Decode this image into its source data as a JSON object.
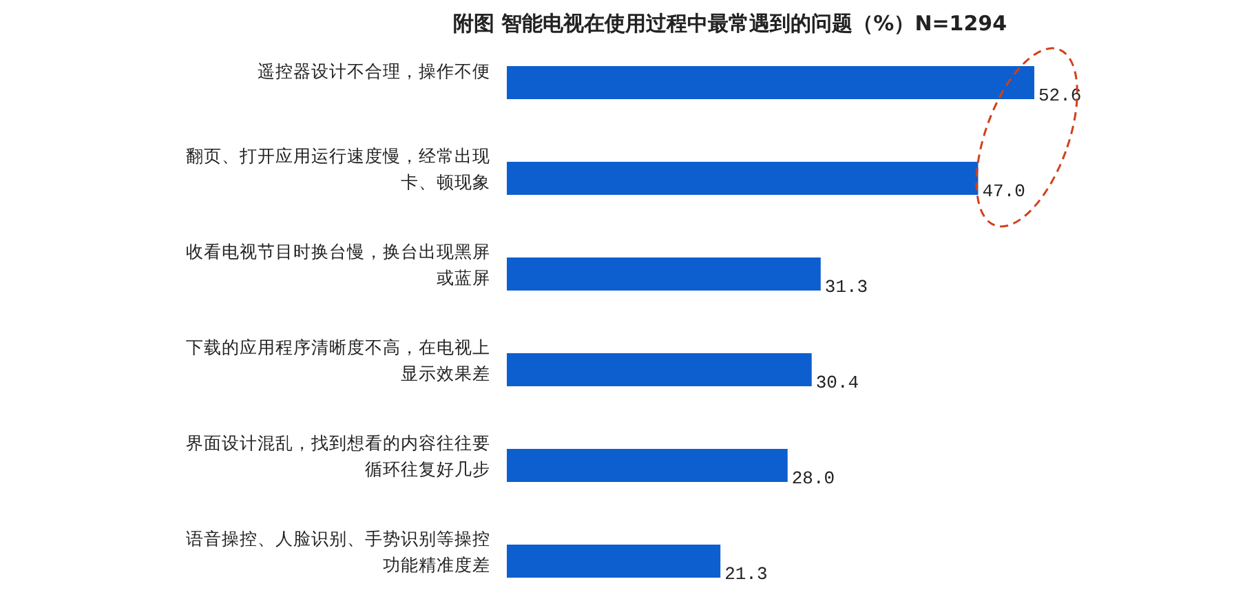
{
  "chart_data": {
    "type": "bar",
    "orientation": "horizontal",
    "title": "附图 智能电视在使用过程中最常遇到的问题（%）N=1294",
    "categories": [
      "遥控器设计不合理，操作不便",
      "翻页、打开应用运行速度慢，经常出现卡、顿现象",
      "收看电视节目时换台慢，换台出现黑屏或蓝屏",
      "下载的应用程序清晰度不高，在电视上显示效果差",
      "界面设计混乱，找到想看的内容往往要循环往复好几步",
      "语音操控、人脸识别、手势识别等操控功能精准度差"
    ],
    "values": [
      52.6,
      47.0,
      31.3,
      30.4,
      28.0,
      21.3
    ],
    "value_labels": [
      "52.6",
      "47.0",
      "31.3",
      "30.4",
      "28.0",
      "21.3"
    ],
    "color": "#0d5fcf"
  }
}
